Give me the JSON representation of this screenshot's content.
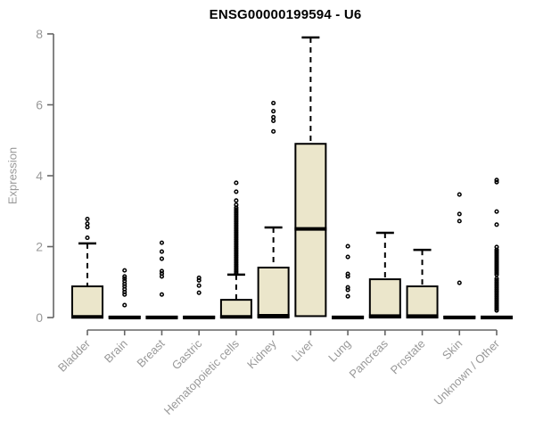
{
  "chart_data": {
    "type": "boxplot",
    "title": "ENSG00000199594 - U6",
    "ylabel": "Expression",
    "ylim": [
      0,
      8
    ],
    "yticks": [
      0,
      2,
      4,
      6,
      8
    ],
    "grid": false,
    "legend": "none",
    "box_fill": "#EBE6CB",
    "box_stroke": "#000000",
    "axis_color": "#666666",
    "label_color": "#999999",
    "categories": [
      "Bladder",
      "Brain",
      "Breast",
      "Gastric",
      "Hematopoietic cells",
      "Kidney",
      "Liver",
      "Lung",
      "Pancreas",
      "Prostate",
      "Skin",
      "Unknown / Other"
    ],
    "series": [
      {
        "label": "Bladder",
        "q1": 0,
        "median": 0.02,
        "q3": 0.88,
        "whisker_high": 2.09,
        "whisker_low": 0,
        "outliers": [
          2.25,
          2.55,
          2.65,
          2.78
        ]
      },
      {
        "label": "Brain",
        "q1": 0,
        "median": 0,
        "q3": 0.03,
        "whisker_high": 0.03,
        "whisker_low": 0,
        "outliers": [
          0.35,
          0.65,
          0.72,
          0.8,
          0.88,
          0.95,
          1.03,
          1.1,
          1.16,
          1.33
        ]
      },
      {
        "label": "Breast",
        "q1": 0,
        "median": 0,
        "q3": 0.03,
        "whisker_high": 0.03,
        "whisker_low": 0,
        "outliers": [
          0.65,
          1.16,
          1.24,
          1.31,
          1.66,
          1.86,
          2.11
        ]
      },
      {
        "label": "Gastric",
        "q1": 0,
        "median": 0,
        "q3": 0.03,
        "whisker_high": 0.03,
        "whisker_low": 0,
        "outliers": [
          0.7,
          0.9,
          1.05,
          1.12
        ]
      },
      {
        "label": "Hematopoietic cells",
        "q1": 0,
        "median": 0.02,
        "q3": 0.5,
        "whisker_high": 1.21,
        "whisker_low": 0,
        "outliers": [
          1.25,
          1.3,
          1.35,
          1.4,
          1.45,
          1.5,
          1.55,
          1.6,
          1.65,
          1.7,
          1.75,
          1.8,
          1.85,
          1.9,
          1.95,
          2.0,
          2.05,
          2.1,
          2.15,
          2.2,
          2.25,
          2.3,
          2.35,
          2.4,
          2.45,
          2.5,
          2.55,
          2.6,
          2.65,
          2.7,
          2.75,
          2.8,
          2.85,
          2.9,
          2.95,
          3.0,
          3.05,
          3.1,
          3.18,
          3.3,
          3.55,
          3.8
        ]
      },
      {
        "label": "Kidney",
        "q1": 0,
        "median": 0.05,
        "q3": 1.41,
        "whisker_high": 2.54,
        "whisker_low": 0,
        "outliers": [
          5.25,
          5.55,
          5.65,
          5.82,
          6.05
        ]
      },
      {
        "label": "Liver",
        "q1": 0.04,
        "median": 2.5,
        "q3": 4.9,
        "whisker_high": 7.9,
        "whisker_low": 0.04,
        "outliers": []
      },
      {
        "label": "Lung",
        "q1": 0,
        "median": 0,
        "q3": 0.03,
        "whisker_high": 0.03,
        "whisker_low": 0,
        "outliers": [
          0.6,
          0.78,
          0.85,
          1.16,
          1.23,
          1.71,
          2.01
        ]
      },
      {
        "label": "Pancreas",
        "q1": 0,
        "median": 0.04,
        "q3": 1.08,
        "whisker_high": 2.39,
        "whisker_low": 0,
        "outliers": []
      },
      {
        "label": "Prostate",
        "q1": 0,
        "median": 0.04,
        "q3": 0.88,
        "whisker_high": 1.91,
        "whisker_low": 0,
        "outliers": []
      },
      {
        "label": "Skin",
        "q1": 0,
        "median": 0,
        "q3": 0.03,
        "whisker_high": 0.03,
        "whisker_low": 0,
        "outliers": [
          0.98,
          2.72,
          2.92,
          3.47
        ]
      },
      {
        "label": "Unknown / Other",
        "q1": 0,
        "median": 0,
        "q3": 0.03,
        "whisker_high": 0.03,
        "whisker_low": 0,
        "outliers": [
          0.2,
          0.25,
          0.3,
          0.35,
          0.4,
          0.45,
          0.5,
          0.55,
          0.6,
          0.65,
          0.7,
          0.75,
          0.8,
          0.85,
          0.9,
          0.95,
          1.0,
          1.05,
          1.1,
          1.21,
          1.26,
          1.31,
          1.36,
          1.41,
          1.46,
          1.51,
          1.56,
          1.61,
          1.66,
          1.71,
          1.76,
          1.81,
          1.86,
          1.91,
          1.99,
          2.62,
          2.99,
          3.82,
          3.88
        ]
      }
    ]
  }
}
